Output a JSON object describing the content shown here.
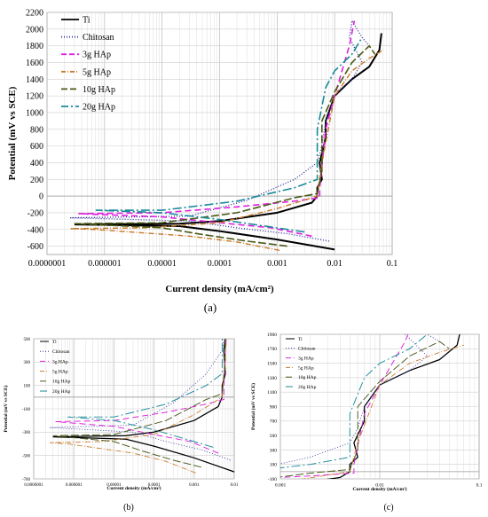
{
  "chart_data": [
    {
      "type": "line",
      "panel": "a",
      "caption": "(a)",
      "xlabel": "Current density (mA/cm²)",
      "ylabel": "Potential (mV vs SCE)",
      "x_scale": "log",
      "xlim": [
        1e-07,
        0.1
      ],
      "ylim": [
        -700,
        2200
      ],
      "xticks": [
        "0.0000001",
        "0.000001",
        "0.00001",
        "0.0001",
        "0.001",
        "0.01",
        "0.1"
      ],
      "yticks": [
        -600,
        -400,
        -200,
        0,
        200,
        400,
        600,
        800,
        1000,
        1200,
        1400,
        1600,
        1800,
        2000,
        2200
      ],
      "grid": true,
      "legend_position": "top-left",
      "series": [
        {
          "name": "Ti",
          "color": "#000000",
          "dash": "",
          "width": 2,
          "x": [
            0.01,
            0.001,
            0.0001,
            2e-05,
            3e-07,
            2e-05,
            0.0001,
            0.001,
            0.004,
            0.005,
            0.005,
            0.006,
            0.0055,
            0.007,
            0.007,
            0.01,
            0.02,
            0.04,
            0.06,
            0.065
          ],
          "y": [
            -640,
            -520,
            -420,
            -360,
            -340,
            -330,
            -300,
            -200,
            -80,
            0,
            100,
            200,
            400,
            700,
            900,
            1200,
            1400,
            1550,
            1750,
            1950
          ]
        },
        {
          "name": "Chitosan",
          "color": "#2b2b9a",
          "dash": "1,2",
          "width": 1.3,
          "x": [
            0.008,
            0.0015,
            0.0002,
            3e-05,
            2.5e-07,
            3e-05,
            0.0003,
            0.002,
            0.005,
            0.006,
            0.007,
            0.01,
            0.02,
            0.03,
            0.018,
            0.02,
            0.03,
            0.04
          ],
          "y": [
            -540,
            -450,
            -380,
            -300,
            -260,
            -240,
            -50,
            200,
            400,
            600,
            900,
            1200,
            1400,
            1600,
            1900,
            2100,
            1900,
            1800
          ]
        },
        {
          "name": "3g HAp",
          "color": "#e020e0",
          "dash": "7,4",
          "width": 1.6,
          "x": [
            0.004,
            0.0008,
            0.0001,
            1e-05,
            3.5e-07,
            1e-05,
            0.0002,
            0.002,
            0.0055,
            0.0055,
            0.007,
            0.01,
            0.018,
            0.022
          ],
          "y": [
            -480,
            -380,
            -320,
            -250,
            -210,
            -200,
            -130,
            -60,
            -20,
            100,
            800,
            1200,
            1800,
            2100
          ]
        },
        {
          "name": "5g HAp",
          "color": "#c87a2b",
          "dash": "6,2,1,2",
          "width": 1.4,
          "x": [
            0.0011,
            0.0002,
            3e-05,
            7e-07,
            2.5e-07,
            5e-06,
            0.0001,
            0.001,
            0.005,
            0.006,
            0.01,
            0.02,
            0.04,
            0.07
          ],
          "y": [
            -650,
            -550,
            -480,
            -400,
            -390,
            -380,
            -320,
            -150,
            0,
            400,
            1200,
            1500,
            1650,
            1750
          ]
        },
        {
          "name": "10g HAp",
          "color": "#4a5a1a",
          "dash": "9,3",
          "width": 1.6,
          "x": [
            0.0015,
            0.0003,
            5e-05,
            1e-05,
            3e-07,
            1e-05,
            0.0002,
            0.002,
            0.005,
            0.006,
            0.006,
            0.01,
            0.02,
            0.04,
            0.05
          ],
          "y": [
            -600,
            -540,
            -460,
            -380,
            -330,
            -320,
            -200,
            -20,
            30,
            300,
            900,
            1250,
            1600,
            1800,
            1700
          ]
        },
        {
          "name": "20g HAp",
          "color": "#1a8a9a",
          "dash": "10,3,2,3",
          "width": 1.6,
          "x": [
            0.003,
            0.0005,
            0.0001,
            1e-05,
            7e-07,
            1e-05,
            0.0002,
            0.002,
            0.005,
            0.005,
            0.007,
            0.01,
            0.02,
            0.03
          ],
          "y": [
            -430,
            -350,
            -280,
            -200,
            -170,
            -170,
            -60,
            100,
            200,
            800,
            1300,
            1500,
            1700,
            1900
          ]
        }
      ]
    },
    {
      "type": "line",
      "panel": "b",
      "caption": "(b)",
      "xlabel": "Current density (mA/cm²)",
      "ylabel": "Potential (mV vs SCE)",
      "x_scale": "log",
      "xlim": [
        1e-07,
        0.01
      ],
      "ylim": [
        -700,
        500
      ],
      "xticks": [
        "0.0000001",
        "0.000001",
        "0.00001",
        "0.0001",
        "0.001",
        "0.01"
      ],
      "yticks": [
        -700,
        -500,
        -300,
        -100,
        100,
        300,
        500
      ],
      "grid": true,
      "legend_position": "top-left",
      "legend": [
        "Ti",
        "Chitosan",
        "3g HAp",
        "5g HAp",
        "10g HAp",
        "20g HAp"
      ]
    },
    {
      "type": "line",
      "panel": "c",
      "caption": "(c)",
      "xlabel": "Current density (mA/cm²)",
      "ylabel": "Potential (mV vs SCE)",
      "x_scale": "log",
      "xlim": [
        0.001,
        0.1
      ],
      "ylim": [
        -100,
        1900
      ],
      "xticks": [
        "0.001",
        "0.01",
        "0.1"
      ],
      "yticks": [
        -100,
        100,
        300,
        500,
        700,
        900,
        1100,
        1300,
        1500,
        1700,
        1900
      ],
      "grid": true,
      "legend_position": "top-left",
      "legend": [
        "Ti",
        "Chitosan",
        "3g HAp",
        "5g HAp",
        "10g HAp",
        "20g HAp"
      ]
    }
  ]
}
